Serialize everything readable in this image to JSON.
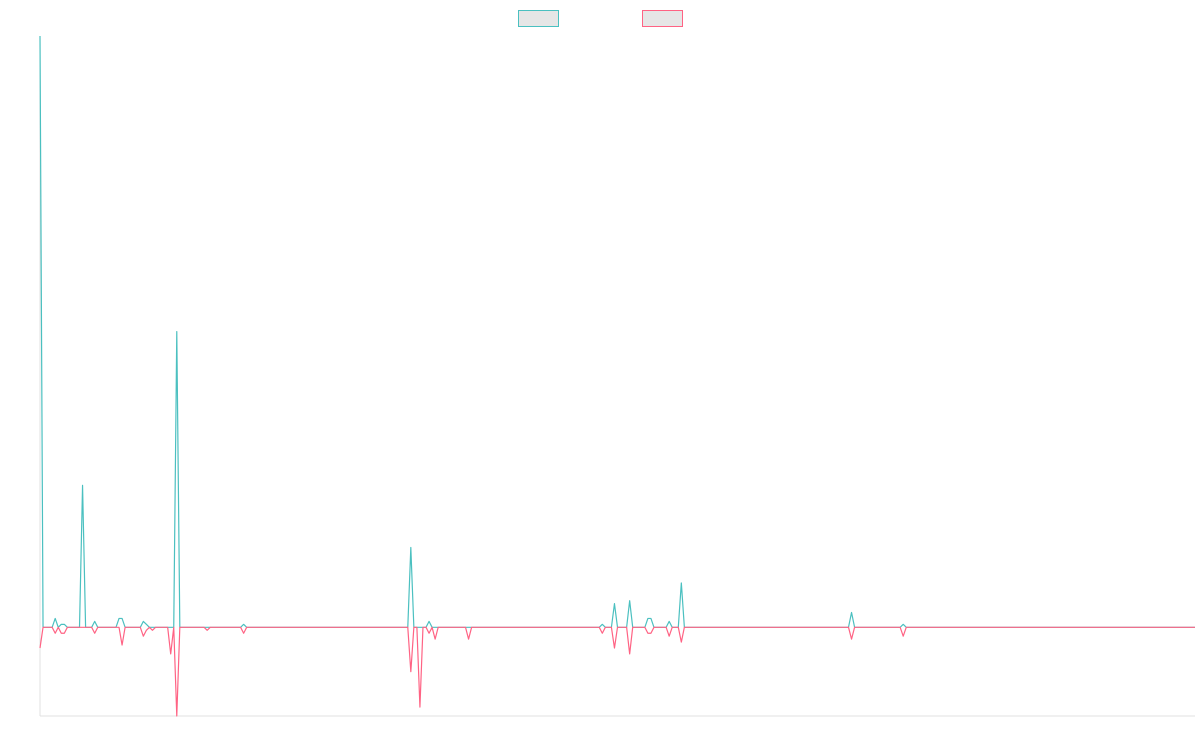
{
  "chart_data": {
    "type": "line",
    "title": "",
    "xlabel": "",
    "ylabel": "",
    "grid": false,
    "legend": "top-center",
    "ylim": [
      -30,
      200
    ],
    "xlim": [
      0,
      380
    ],
    "series": [
      {
        "color": "#4bc0c0",
        "fill": "#e6e6e6",
        "points": [
          [
            0,
            200
          ],
          [
            1,
            0
          ],
          [
            4,
            0
          ],
          [
            5,
            3
          ],
          [
            6,
            0
          ],
          [
            7,
            1
          ],
          [
            8,
            1
          ],
          [
            9,
            0
          ],
          [
            13,
            0
          ],
          [
            14,
            48
          ],
          [
            15,
            0
          ],
          [
            17,
            0
          ],
          [
            18,
            2
          ],
          [
            19,
            0
          ],
          [
            25,
            0
          ],
          [
            26,
            3
          ],
          [
            27,
            3
          ],
          [
            28,
            0
          ],
          [
            33,
            0
          ],
          [
            34,
            2
          ],
          [
            35,
            1
          ],
          [
            36,
            0
          ],
          [
            37,
            0
          ],
          [
            38,
            0
          ],
          [
            44,
            0
          ],
          [
            45,
            100
          ],
          [
            46,
            0
          ],
          [
            54,
            0
          ],
          [
            55,
            0
          ],
          [
            56,
            0
          ],
          [
            66,
            0
          ],
          [
            67,
            1
          ],
          [
            68,
            0
          ],
          [
            121,
            0
          ],
          [
            122,
            27
          ],
          [
            123,
            0
          ],
          [
            124,
            0
          ],
          [
            125,
            0
          ],
          [
            127,
            0
          ],
          [
            128,
            2
          ],
          [
            129,
            0
          ],
          [
            140,
            0
          ],
          [
            141,
            0
          ],
          [
            142,
            0
          ],
          [
            184,
            0
          ],
          [
            185,
            1
          ],
          [
            186,
            0
          ],
          [
            188,
            0
          ],
          [
            189,
            8
          ],
          [
            190,
            0
          ],
          [
            193,
            0
          ],
          [
            194,
            9
          ],
          [
            195,
            0
          ],
          [
            199,
            0
          ],
          [
            200,
            3
          ],
          [
            201,
            3
          ],
          [
            202,
            0
          ],
          [
            206,
            0
          ],
          [
            207,
            2
          ],
          [
            208,
            0
          ],
          [
            210,
            0
          ],
          [
            211,
            15
          ],
          [
            212,
            0
          ],
          [
            266,
            0
          ],
          [
            267,
            5
          ],
          [
            268,
            0
          ],
          [
            283,
            0
          ],
          [
            284,
            1
          ],
          [
            285,
            0
          ],
          [
            380,
            0
          ]
        ]
      },
      {
        "color": "#ff6384",
        "fill": "#e6e6e6",
        "points": [
          [
            0,
            -7
          ],
          [
            1,
            0
          ],
          [
            4,
            0
          ],
          [
            5,
            -2
          ],
          [
            6,
            0
          ],
          [
            7,
            -2
          ],
          [
            8,
            -2
          ],
          [
            9,
            0
          ],
          [
            13,
            0
          ],
          [
            14,
            0
          ],
          [
            15,
            0
          ],
          [
            17,
            0
          ],
          [
            18,
            -2
          ],
          [
            19,
            0
          ],
          [
            25,
            0
          ],
          [
            26,
            0
          ],
          [
            27,
            -6
          ],
          [
            28,
            0
          ],
          [
            33,
            0
          ],
          [
            34,
            -3
          ],
          [
            35,
            -1
          ],
          [
            36,
            0
          ],
          [
            37,
            -1
          ],
          [
            38,
            0
          ],
          [
            42,
            0
          ],
          [
            43,
            -9
          ],
          [
            44,
            0
          ],
          [
            45,
            -30
          ],
          [
            46,
            0
          ],
          [
            54,
            0
          ],
          [
            55,
            -1
          ],
          [
            56,
            0
          ],
          [
            66,
            0
          ],
          [
            67,
            -2
          ],
          [
            68,
            0
          ],
          [
            121,
            0
          ],
          [
            122,
            -15
          ],
          [
            123,
            0
          ],
          [
            124,
            0
          ],
          [
            125,
            -27
          ],
          [
            126,
            0
          ],
          [
            127,
            0
          ],
          [
            128,
            -2
          ],
          [
            129,
            0
          ],
          [
            130,
            -4
          ],
          [
            131,
            0
          ],
          [
            140,
            0
          ],
          [
            141,
            -4
          ],
          [
            142,
            0
          ],
          [
            184,
            0
          ],
          [
            185,
            -2
          ],
          [
            186,
            0
          ],
          [
            188,
            0
          ],
          [
            189,
            -7
          ],
          [
            190,
            0
          ],
          [
            193,
            0
          ],
          [
            194,
            -9
          ],
          [
            195,
            0
          ],
          [
            199,
            0
          ],
          [
            200,
            -2
          ],
          [
            201,
            -2
          ],
          [
            202,
            0
          ],
          [
            206,
            0
          ],
          [
            207,
            -3
          ],
          [
            208,
            0
          ],
          [
            210,
            0
          ],
          [
            211,
            -5
          ],
          [
            212,
            0
          ],
          [
            266,
            0
          ],
          [
            267,
            -4
          ],
          [
            268,
            0
          ],
          [
            283,
            0
          ],
          [
            284,
            -3
          ],
          [
            285,
            0
          ],
          [
            380,
            0
          ]
        ]
      }
    ]
  }
}
